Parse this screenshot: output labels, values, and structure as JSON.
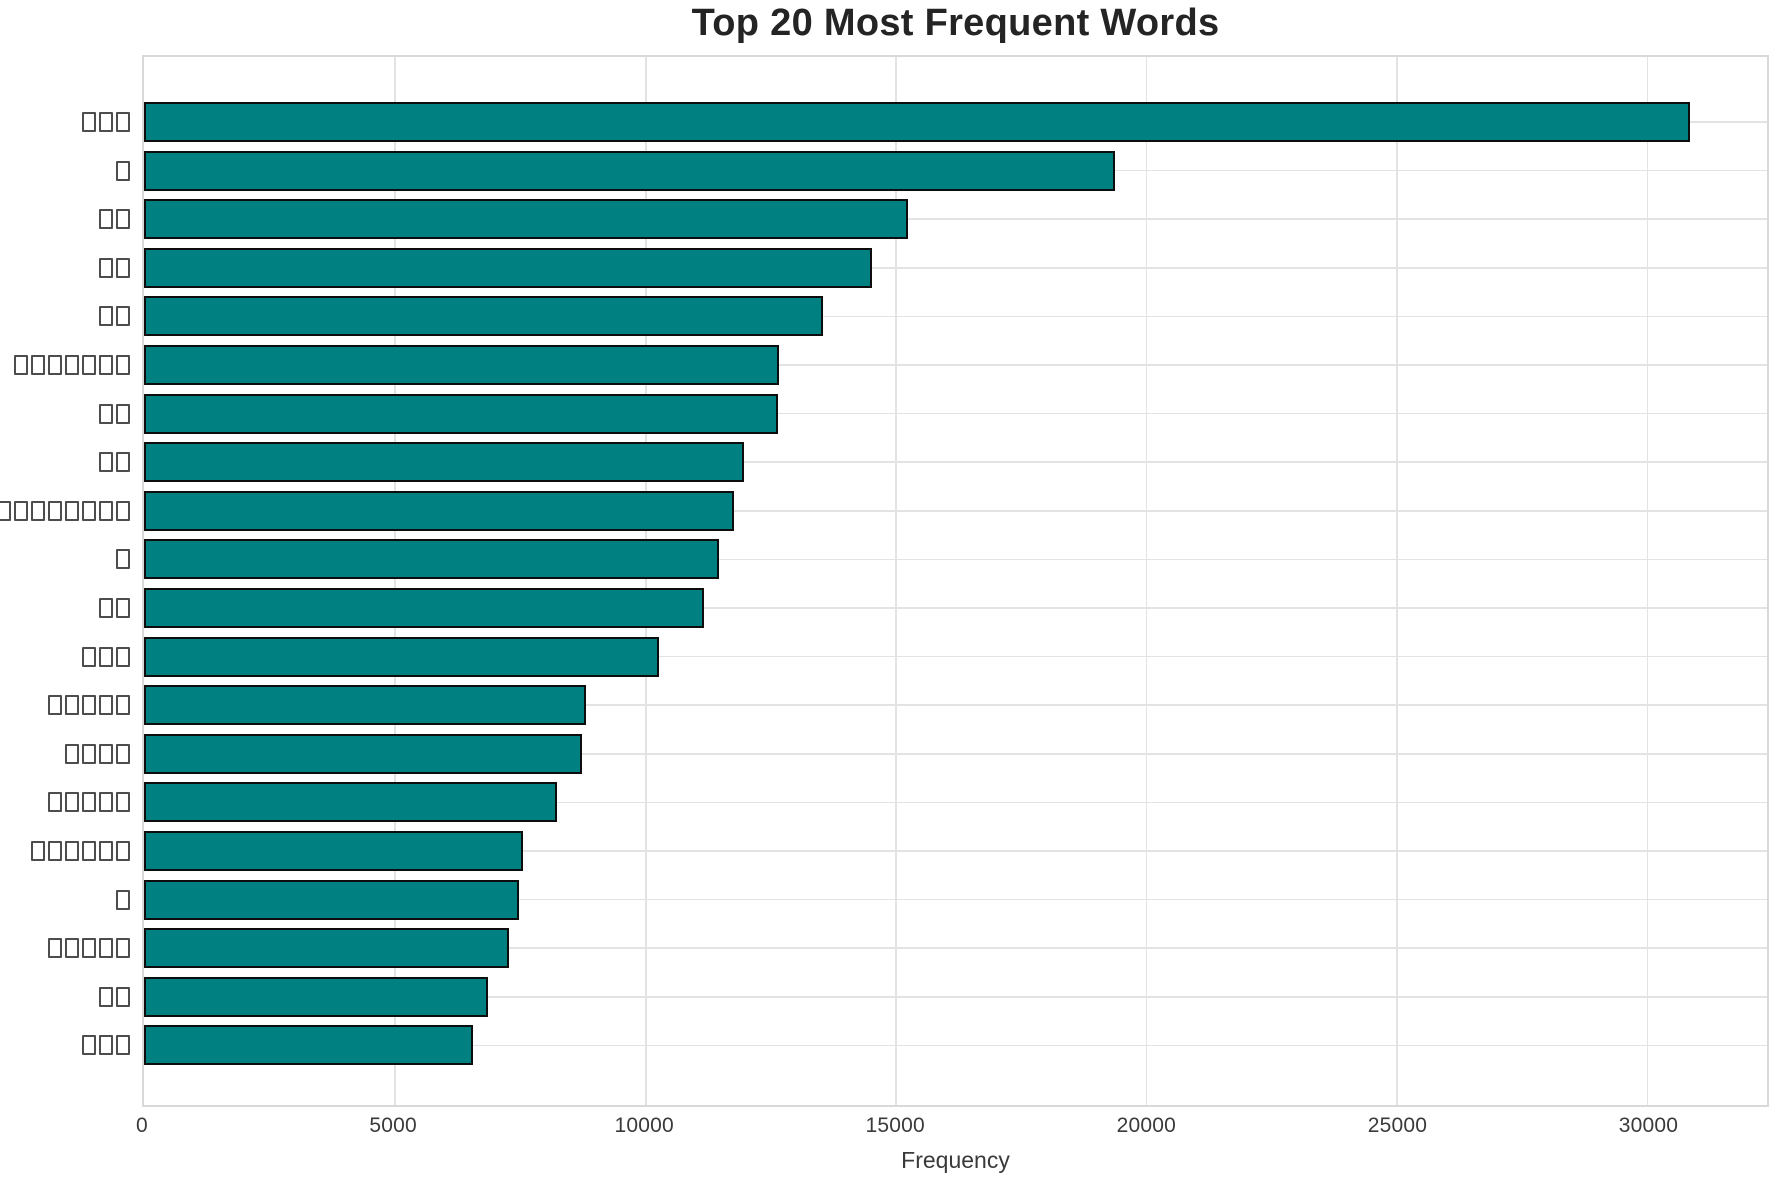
{
  "chart_data": {
    "type": "bar",
    "orientation": "horizontal",
    "title": "Top 20 Most Frequent Words",
    "xlabel": "Frequency",
    "ylabel": "",
    "categories": [
      "□□□",
      "□",
      "□□",
      "□□",
      "□□",
      "□□□□□□□",
      "□□",
      "□□",
      "□□□□□□□□□",
      "□",
      "□□",
      "□□□",
      "□□□□□",
      "□□□□",
      "□□□□□",
      "□□□□□□",
      "□",
      "□□□□□",
      "□□",
      "□□□"
    ],
    "values": [
      30860,
      19390,
      15250,
      14530,
      13550,
      12680,
      12660,
      11980,
      11780,
      11480,
      11180,
      10290,
      8830,
      8750,
      8250,
      7570,
      7490,
      7290,
      6870,
      6570
    ],
    "xticks": [
      0,
      5000,
      10000,
      15000,
      20000,
      25000,
      30000
    ],
    "xlim": [
      0,
      32400
    ],
    "grid": true,
    "legend_position": "none",
    "bar_color": "#008080",
    "bar_edge_color": "#0d0d0d",
    "grid_color": "#e3e3e3",
    "spine_color": "#d9d9d9",
    "title_color": "#242424",
    "tick_color": "#3a3a3a",
    "ylabel_glyph_color": "#4d4d4d"
  }
}
